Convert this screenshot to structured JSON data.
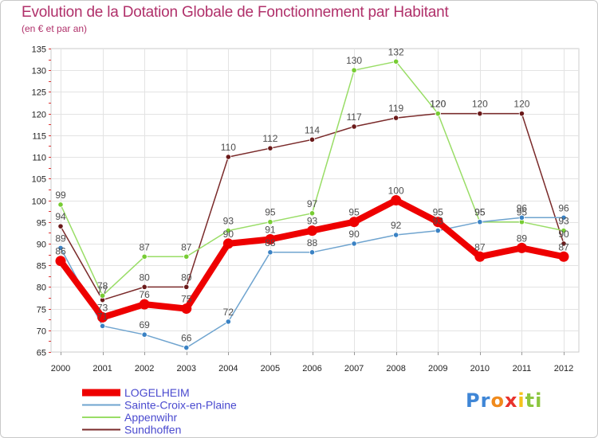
{
  "title": "Evolution de la Dotation Globale de Fonctionnement par Habitant",
  "subtitle": "(en € et par an)",
  "logo": {
    "letters": [
      "P",
      "r",
      "o",
      "x",
      "i",
      "t",
      "i"
    ],
    "colors": [
      "#3f86d6",
      "#3f86d6",
      "#f08a1c",
      "#e8322c",
      "#f5c21b",
      "#8cc63f",
      "#8cc63f"
    ]
  },
  "chart_data": {
    "type": "line",
    "title": "Evolution de la Dotation Globale de Fonctionnement par Habitant",
    "subtitle": "(en € et par an)",
    "xlabel": "",
    "ylabel": "",
    "ylim": [
      65,
      135
    ],
    "yticks": [
      65,
      70,
      75,
      80,
      85,
      90,
      95,
      100,
      105,
      110,
      115,
      120,
      125,
      130,
      135
    ],
    "grid": true,
    "legend_position": "bottom-left",
    "categories": [
      "2000",
      "2001",
      "2002",
      "2003",
      "2004",
      "2005",
      "2006",
      "2007",
      "2008",
      "2009",
      "2010",
      "2011",
      "2012"
    ],
    "series": [
      {
        "name": "Sundhoffen",
        "color": "#7a2a2a",
        "marker_color": "#6b1a1a",
        "values": [
          94,
          77,
          80,
          80,
          110,
          112,
          114,
          117,
          119,
          120,
          120,
          120,
          90
        ],
        "labels": [
          "94",
          "77",
          "80",
          "80",
          "110",
          "112",
          "114",
          "117",
          "119",
          "120",
          "120",
          "120",
          "90"
        ]
      },
      {
        "name": "Appenwihr",
        "color": "#99dd66",
        "marker_color": "#77cc33",
        "values": [
          99,
          78,
          87,
          87,
          93,
          95,
          97,
          130,
          132,
          120,
          95,
          95,
          93
        ],
        "labels": [
          "99",
          "78",
          "87",
          "87",
          "93",
          "95",
          "97",
          "130",
          "132",
          "120",
          "95",
          "95",
          "93"
        ]
      },
      {
        "name": "Sainte-Croix-en-Plaine",
        "color": "#6fa4cf",
        "marker_color": "#3a82c4",
        "values": [
          89,
          71,
          69,
          66,
          72,
          88,
          88,
          90,
          92,
          93,
          95,
          96,
          96
        ],
        "labels": [
          "89",
          "71",
          "69",
          "66",
          "72",
          "88",
          "88",
          "90",
          "92",
          "93",
          "95",
          "96",
          "96"
        ]
      },
      {
        "name": "LOGELHEIM",
        "color": "#ee0000",
        "marker_color": "#ee0000",
        "values": [
          86,
          73,
          76,
          75,
          90,
          91,
          93,
          95,
          100,
          95,
          87,
          89,
          87
        ],
        "labels": [
          "86",
          "73",
          "76",
          "75",
          "90",
          "91",
          "93",
          "95",
          "100",
          "95",
          "87",
          "89",
          "87"
        ]
      }
    ],
    "legend": [
      "LOGELHEIM",
      "Sainte-Croix-en-Plaine",
      "Appenwihr",
      "Sundhoffen"
    ]
  }
}
